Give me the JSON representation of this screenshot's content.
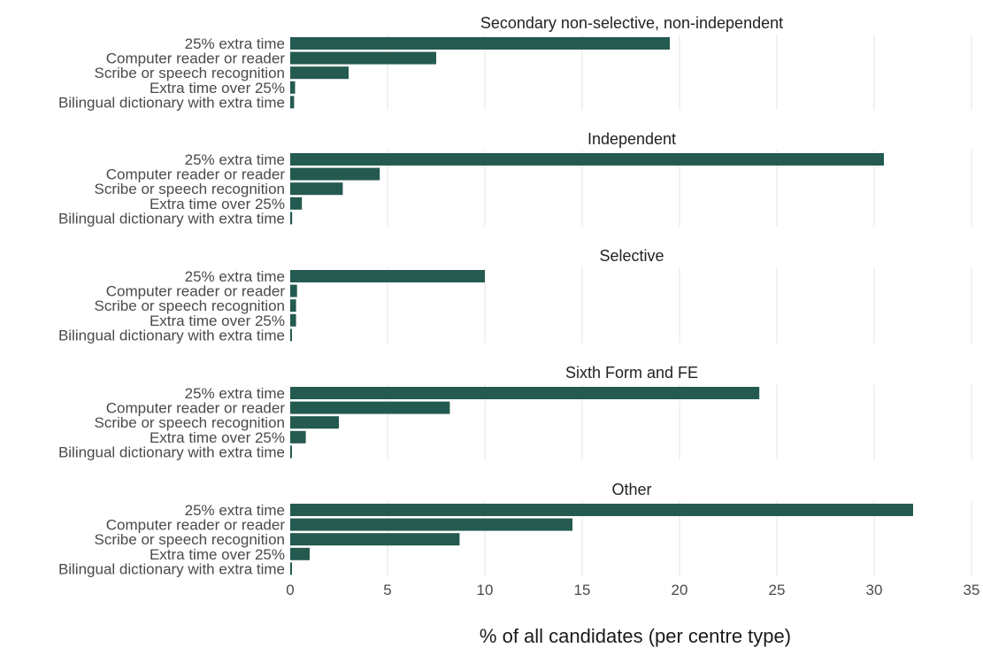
{
  "chart_data": {
    "type": "bar",
    "orientation": "horizontal",
    "xlabel": "% of all candidates (per centre type)",
    "xlim": [
      0,
      35
    ],
    "x_ticks": [
      "0",
      "5",
      "10",
      "15",
      "20",
      "25",
      "30",
      "35"
    ],
    "grid": "vertical",
    "bar_color": "#245a50",
    "categories": [
      "25% extra time",
      "Computer reader or reader",
      "Scribe or speech recognition",
      "Extra time over 25%",
      "Bilingual dictionary with extra time"
    ],
    "panels": [
      {
        "title": "Secondary non-selective, non-independent",
        "values": [
          19.5,
          7.5,
          3.0,
          0.25,
          0.2
        ]
      },
      {
        "title": "Independent",
        "values": [
          30.5,
          4.6,
          2.7,
          0.6,
          0.1
        ]
      },
      {
        "title": "Selective",
        "values": [
          10.0,
          0.35,
          0.3,
          0.3,
          0.05
        ]
      },
      {
        "title": "Sixth Form and FE",
        "values": [
          24.1,
          8.2,
          2.5,
          0.8,
          0.05
        ]
      },
      {
        "title": "Other",
        "values": [
          32.0,
          14.5,
          8.7,
          1.0,
          0.05
        ]
      }
    ]
  }
}
